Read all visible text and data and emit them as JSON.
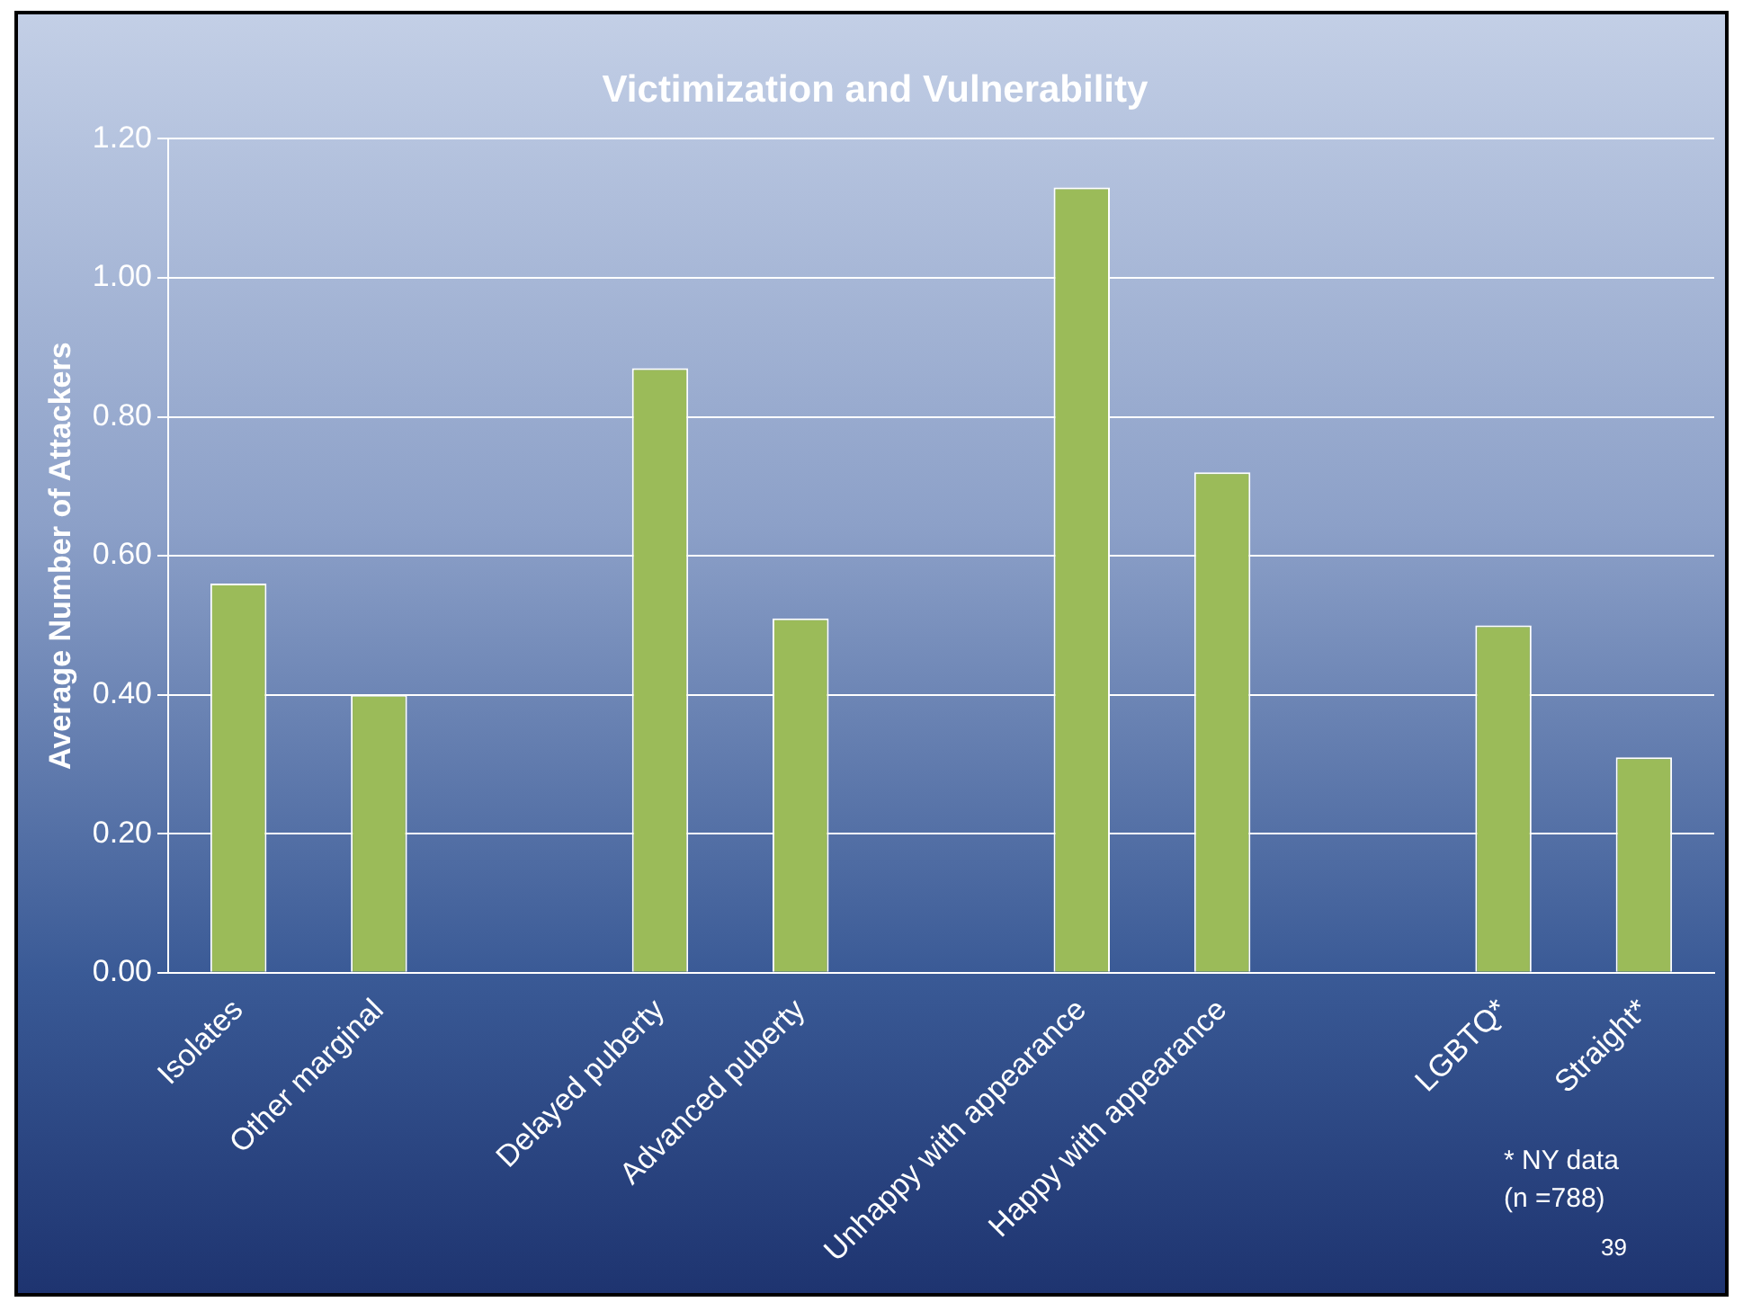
{
  "chart_data": {
    "type": "bar",
    "title": "Victimization and Vulnerability",
    "ylabel": "Average Number of Attackers",
    "categories": [
      "Isolates",
      "Other marginal",
      null,
      "Delayed puberty",
      "Advanced puberty",
      null,
      "Unhappy with appearance",
      "Happy with appearance",
      null,
      "LGBTQ*",
      "Straight*"
    ],
    "values": [
      0.56,
      0.4,
      null,
      0.87,
      0.51,
      null,
      1.13,
      0.72,
      null,
      0.5,
      0.31
    ],
    "color": "#9bbb59",
    "ylim": [
      0,
      1.2
    ],
    "yticks": [
      {
        "value": 0,
        "label": "0.00"
      },
      {
        "value": 0.2,
        "label": "0.20"
      },
      {
        "value": 0.4,
        "label": "0.40"
      },
      {
        "value": 0.6,
        "label": "0.60"
      },
      {
        "value": 0.8,
        "label": "0.80"
      },
      {
        "value": 1,
        "label": "1.00"
      },
      {
        "value": 1.2,
        "label": "1.20"
      }
    ],
    "grid": "y",
    "annotations": [
      "* NY data (n =788)",
      "39"
    ]
  }
}
